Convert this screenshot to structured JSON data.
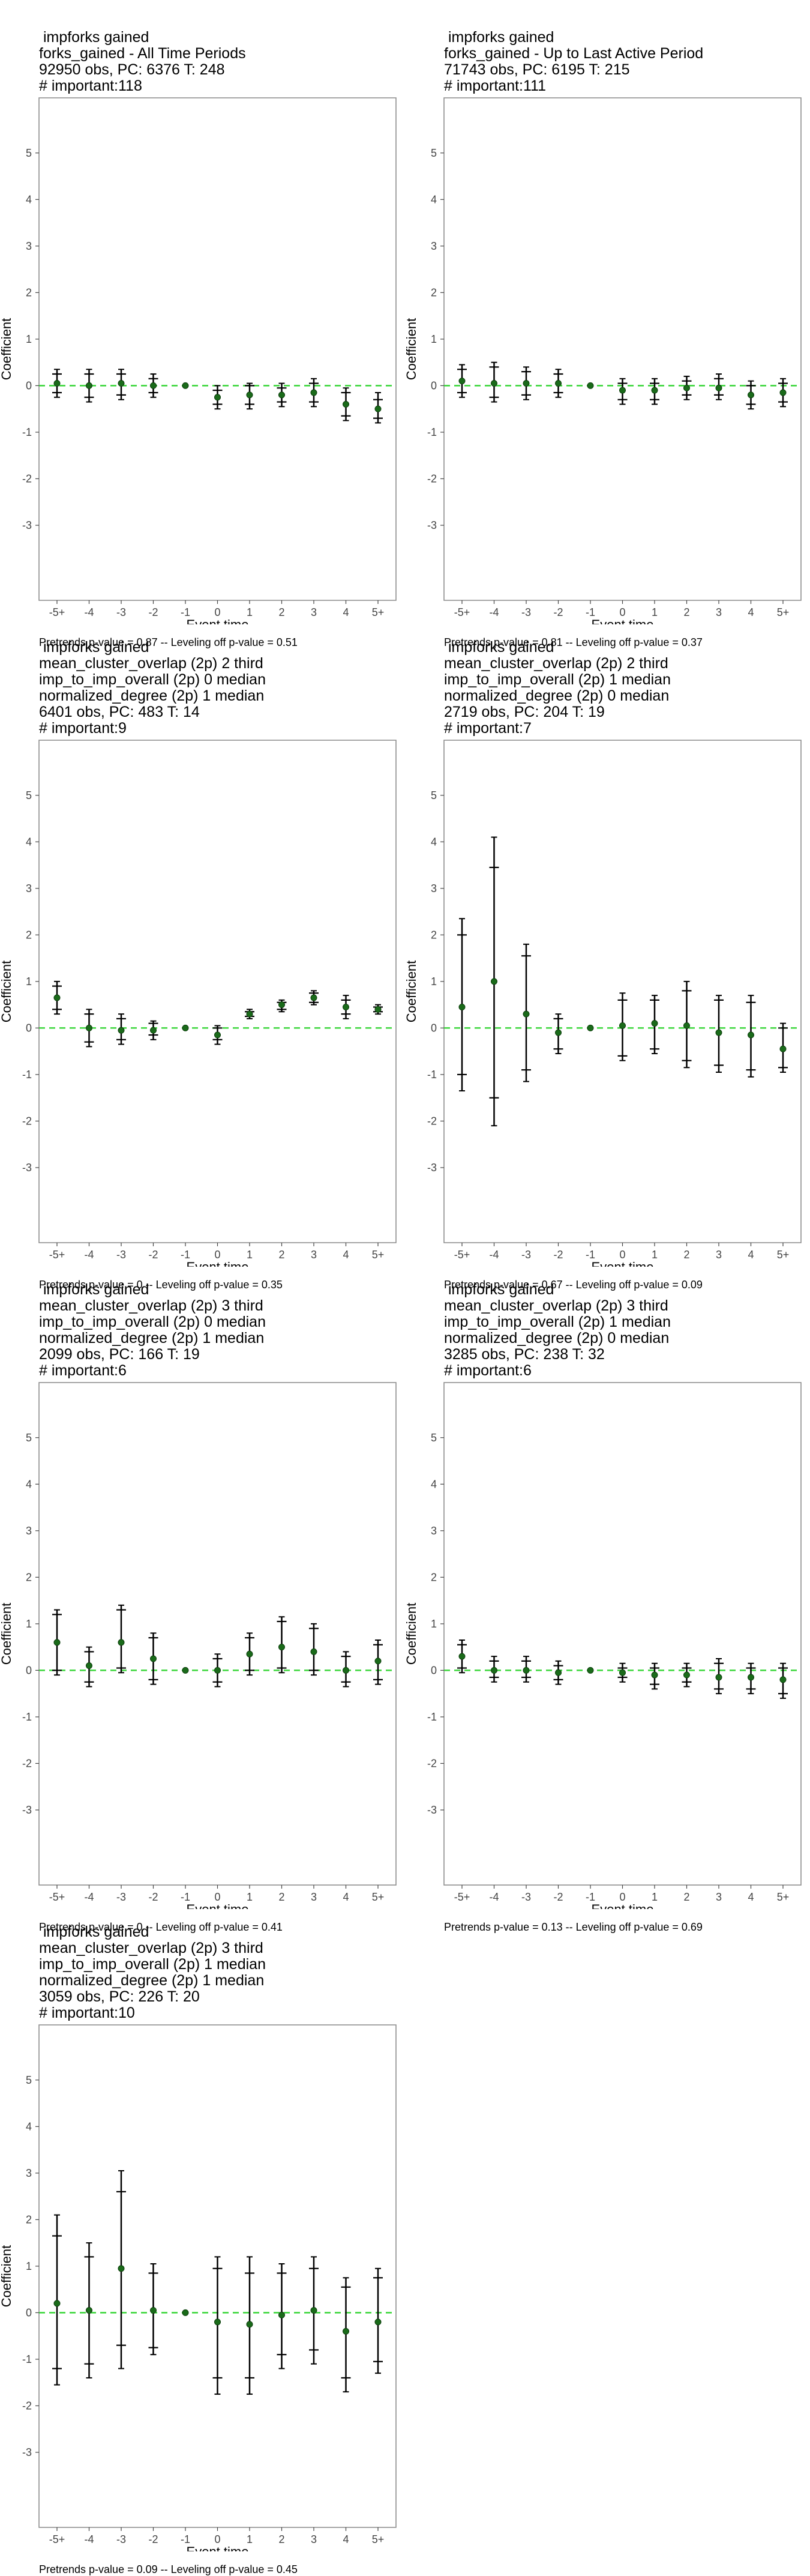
{
  "axes": {
    "xlabel": "Event time",
    "ylabel": "Coefficient",
    "x_ticks": [
      "-5+",
      "-4",
      "-3",
      "-2",
      "-1",
      "0",
      "1",
      "2",
      "3",
      "4",
      "5+"
    ],
    "y_ticks": [
      "5",
      "4",
      "3",
      "2",
      "1",
      "0",
      "-1",
      "-2",
      "-3"
    ],
    "ylim": [
      -4.2,
      5.9
    ]
  },
  "colors": {
    "point": "#1a6b1a",
    "zero_line": "#3ad63a",
    "whisker": "#000000",
    "frame": "#888888"
  },
  "chart_data": [
    {
      "type": "scatter",
      "title_lines": [
        " impforks gained",
        "forks_gained - All Time Periods",
        "92950 obs, PC: 6376 T: 248",
        "# important:118"
      ],
      "footer": "Pretrends p-value = 0.87 -- Leveling off p-value = 0.51",
      "x": [
        "-5+",
        "-4",
        "-3",
        "-2",
        "-1",
        "0",
        "1",
        "2",
        "3",
        "4",
        "5+"
      ],
      "y": [
        0.05,
        0.0,
        0.05,
        0.0,
        0.0,
        -0.25,
        -0.2,
        -0.2,
        -0.15,
        -0.4,
        -0.5
      ],
      "ci_outer": [
        [
          -0.25,
          0.35
        ],
        [
          -0.35,
          0.35
        ],
        [
          -0.3,
          0.35
        ],
        [
          -0.25,
          0.25
        ],
        [
          0,
          0
        ],
        [
          -0.5,
          0.0
        ],
        [
          -0.5,
          0.05
        ],
        [
          -0.45,
          0.05
        ],
        [
          -0.45,
          0.15
        ],
        [
          -0.75,
          -0.05
        ],
        [
          -0.8,
          -0.15
        ]
      ],
      "ci_inner": [
        [
          -0.15,
          0.25
        ],
        [
          -0.25,
          0.25
        ],
        [
          -0.2,
          0.25
        ],
        [
          -0.15,
          0.15
        ],
        [
          0,
          0
        ],
        [
          -0.4,
          -0.1
        ],
        [
          -0.4,
          0.0
        ],
        [
          -0.35,
          -0.05
        ],
        [
          -0.35,
          0.05
        ],
        [
          -0.65,
          -0.15
        ],
        [
          -0.7,
          -0.3
        ]
      ]
    },
    {
      "type": "scatter",
      "title_lines": [
        " impforks gained",
        "forks_gained - Up to Last Active Period",
        "71743 obs, PC: 6195 T: 215",
        "# important:111"
      ],
      "footer": "Pretrends p-value = 0.81 -- Leveling off p-value = 0.37",
      "x": [
        "-5+",
        "-4",
        "-3",
        "-2",
        "-1",
        "0",
        "1",
        "2",
        "3",
        "4",
        "5+"
      ],
      "y": [
        0.1,
        0.05,
        0.05,
        0.05,
        0.0,
        -0.1,
        -0.1,
        -0.05,
        -0.05,
        -0.2,
        -0.15
      ],
      "ci_outer": [
        [
          -0.25,
          0.45
        ],
        [
          -0.35,
          0.5
        ],
        [
          -0.3,
          0.4
        ],
        [
          -0.25,
          0.35
        ],
        [
          0,
          0
        ],
        [
          -0.4,
          0.15
        ],
        [
          -0.4,
          0.15
        ],
        [
          -0.3,
          0.2
        ],
        [
          -0.3,
          0.25
        ],
        [
          -0.5,
          0.1
        ],
        [
          -0.45,
          0.15
        ]
      ],
      "ci_inner": [
        [
          -0.15,
          0.35
        ],
        [
          -0.25,
          0.4
        ],
        [
          -0.2,
          0.3
        ],
        [
          -0.15,
          0.25
        ],
        [
          0,
          0
        ],
        [
          -0.3,
          0.05
        ],
        [
          -0.3,
          0.05
        ],
        [
          -0.2,
          0.1
        ],
        [
          -0.2,
          0.15
        ],
        [
          -0.4,
          0.0
        ],
        [
          -0.35,
          0.05
        ]
      ]
    },
    {
      "type": "scatter",
      "title_lines": [
        " impforks gained",
        "mean_cluster_overlap (2p) 2 third",
        "imp_to_imp_overall (2p) 0 median",
        "normalized_degree (2p) 1 median",
        "6401 obs, PC: 483 T: 14",
        "# important:9"
      ],
      "footer": "Pretrends p-value = 0 -- Leveling off p-value = 0.35",
      "x": [
        "-5+",
        "-4",
        "-3",
        "-2",
        "-1",
        "0",
        "1",
        "2",
        "3",
        "4",
        "5+"
      ],
      "y": [
        0.65,
        0.0,
        -0.05,
        -0.05,
        0.0,
        -0.15,
        0.3,
        0.5,
        0.65,
        0.45,
        0.4
      ],
      "ci_outer": [
        [
          0.3,
          1.0
        ],
        [
          -0.4,
          0.4
        ],
        [
          -0.35,
          0.3
        ],
        [
          -0.25,
          0.15
        ],
        [
          0,
          0
        ],
        [
          -0.35,
          0.05
        ],
        [
          0.2,
          0.4
        ],
        [
          0.35,
          0.6
        ],
        [
          0.5,
          0.8
        ],
        [
          0.2,
          0.7
        ],
        [
          0.3,
          0.5
        ]
      ],
      "ci_inner": [
        [
          0.4,
          0.9
        ],
        [
          -0.3,
          0.3
        ],
        [
          -0.25,
          0.2
        ],
        [
          -0.15,
          0.1
        ],
        [
          0,
          0
        ],
        [
          -0.25,
          0.0
        ],
        [
          0.25,
          0.35
        ],
        [
          0.4,
          0.55
        ],
        [
          0.55,
          0.75
        ],
        [
          0.3,
          0.6
        ],
        [
          0.35,
          0.45
        ]
      ]
    },
    {
      "type": "scatter",
      "title_lines": [
        " impforks gained",
        "mean_cluster_overlap (2p) 2 third",
        "imp_to_imp_overall (2p) 1 median",
        "normalized_degree (2p) 0 median",
        "2719 obs, PC: 204 T: 19",
        "# important:7"
      ],
      "footer": "Pretrends p-value = 0.67 -- Leveling off p-value = 0.09",
      "x": [
        "-5+",
        "-4",
        "-3",
        "-2",
        "-1",
        "0",
        "1",
        "2",
        "3",
        "4",
        "5+"
      ],
      "y": [
        0.45,
        1.0,
        0.3,
        -0.1,
        0.0,
        0.05,
        0.1,
        0.05,
        -0.1,
        -0.15,
        -0.45
      ],
      "ci_outer": [
        [
          -1.35,
          2.35
        ],
        [
          -2.1,
          4.1
        ],
        [
          -1.15,
          1.8
        ],
        [
          -0.55,
          0.3
        ],
        [
          0,
          0
        ],
        [
          -0.7,
          0.75
        ],
        [
          -0.55,
          0.7
        ],
        [
          -0.85,
          1.0
        ],
        [
          -0.95,
          0.7
        ],
        [
          -1.05,
          0.7
        ],
        [
          -0.95,
          0.1
        ]
      ],
      "ci_inner": [
        [
          -1.0,
          2.0
        ],
        [
          -1.5,
          3.45
        ],
        [
          -0.9,
          1.55
        ],
        [
          -0.45,
          0.2
        ],
        [
          0,
          0
        ],
        [
          -0.6,
          0.6
        ],
        [
          -0.45,
          0.6
        ],
        [
          -0.7,
          0.8
        ],
        [
          -0.8,
          0.6
        ],
        [
          -0.9,
          0.55
        ],
        [
          -0.85,
          0.0
        ]
      ]
    },
    {
      "type": "scatter",
      "title_lines": [
        " impforks gained",
        "mean_cluster_overlap (2p) 3 third",
        "imp_to_imp_overall (2p) 0 median",
        "normalized_degree (2p) 1 median",
        "2099 obs, PC: 166 T: 19",
        "# important:6"
      ],
      "footer": "Pretrends p-value = 0 -- Leveling off p-value = 0.41",
      "x": [
        "-5+",
        "-4",
        "-3",
        "-2",
        "-1",
        "0",
        "1",
        "2",
        "3",
        "4",
        "5+"
      ],
      "y": [
        0.6,
        0.1,
        0.6,
        0.25,
        0.0,
        0.0,
        0.35,
        0.5,
        0.4,
        0.0,
        0.2
      ],
      "ci_outer": [
        [
          -0.1,
          1.3
        ],
        [
          -0.35,
          0.5
        ],
        [
          -0.05,
          1.4
        ],
        [
          -0.3,
          0.8
        ],
        [
          0,
          0
        ],
        [
          -0.35,
          0.35
        ],
        [
          -0.1,
          0.8
        ],
        [
          -0.05,
          1.15
        ],
        [
          -0.1,
          1.0
        ],
        [
          -0.35,
          0.4
        ],
        [
          -0.3,
          0.65
        ]
      ],
      "ci_inner": [
        [
          0.0,
          1.2
        ],
        [
          -0.25,
          0.4
        ],
        [
          0.05,
          1.3
        ],
        [
          -0.2,
          0.7
        ],
        [
          0,
          0
        ],
        [
          -0.25,
          0.25
        ],
        [
          0.0,
          0.7
        ],
        [
          0.05,
          1.05
        ],
        [
          0.0,
          0.9
        ],
        [
          -0.25,
          0.3
        ],
        [
          -0.2,
          0.55
        ]
      ]
    },
    {
      "type": "scatter",
      "title_lines": [
        " impforks gained",
        "mean_cluster_overlap (2p) 3 third",
        "imp_to_imp_overall (2p) 1 median",
        "normalized_degree (2p) 0 median",
        "3285 obs, PC: 238 T: 32",
        "# important:6"
      ],
      "footer": "Pretrends p-value = 0.13 -- Leveling off p-value = 0.69",
      "x": [
        "-5+",
        "-4",
        "-3",
        "-2",
        "-1",
        "0",
        "1",
        "2",
        "3",
        "4",
        "5+"
      ],
      "y": [
        0.3,
        0.0,
        0.0,
        -0.05,
        0.0,
        -0.05,
        -0.1,
        -0.1,
        -0.15,
        -0.15,
        -0.2
      ],
      "ci_outer": [
        [
          -0.05,
          0.65
        ],
        [
          -0.25,
          0.3
        ],
        [
          -0.25,
          0.3
        ],
        [
          -0.3,
          0.2
        ],
        [
          0,
          0
        ],
        [
          -0.25,
          0.15
        ],
        [
          -0.4,
          0.15
        ],
        [
          -0.35,
          0.15
        ],
        [
          -0.5,
          0.25
        ],
        [
          -0.5,
          0.15
        ],
        [
          -0.6,
          0.15
        ]
      ],
      "ci_inner": [
        [
          0.05,
          0.55
        ],
        [
          -0.15,
          0.2
        ],
        [
          -0.15,
          0.2
        ],
        [
          -0.2,
          0.1
        ],
        [
          0,
          0
        ],
        [
          -0.15,
          0.05
        ],
        [
          -0.3,
          0.05
        ],
        [
          -0.25,
          0.05
        ],
        [
          -0.4,
          0.15
        ],
        [
          -0.4,
          0.05
        ],
        [
          -0.5,
          0.05
        ]
      ]
    },
    {
      "type": "scatter",
      "title_lines": [
        " impforks gained",
        "mean_cluster_overlap (2p) 3 third",
        "imp_to_imp_overall (2p) 1 median",
        "normalized_degree (2p) 1 median",
        "3059 obs, PC: 226 T: 20",
        "# important:10"
      ],
      "footer": "Pretrends p-value = 0.09 -- Leveling off p-value = 0.45",
      "x": [
        "-5+",
        "-4",
        "-3",
        "-2",
        "-1",
        "0",
        "1",
        "2",
        "3",
        "4",
        "5+"
      ],
      "y": [
        0.2,
        0.05,
        0.95,
        0.05,
        0.0,
        -0.2,
        -0.25,
        -0.05,
        0.05,
        -0.4,
        -0.2
      ],
      "ci_outer": [
        [
          -1.55,
          2.1
        ],
        [
          -1.4,
          1.5
        ],
        [
          -1.2,
          3.05
        ],
        [
          -0.9,
          1.05
        ],
        [
          0,
          0
        ],
        [
          -1.75,
          1.2
        ],
        [
          -1.75,
          1.2
        ],
        [
          -1.2,
          1.05
        ],
        [
          -1.1,
          1.2
        ],
        [
          -1.7,
          0.75
        ],
        [
          -1.3,
          0.95
        ]
      ],
      "ci_inner": [
        [
          -1.2,
          1.65
        ],
        [
          -1.1,
          1.2
        ],
        [
          -0.7,
          2.6
        ],
        [
          -0.75,
          0.85
        ],
        [
          0,
          0
        ],
        [
          -1.4,
          0.95
        ],
        [
          -1.4,
          0.85
        ],
        [
          -0.9,
          0.85
        ],
        [
          -0.8,
          0.95
        ],
        [
          -1.4,
          0.55
        ],
        [
          -1.05,
          0.75
        ]
      ]
    }
  ]
}
